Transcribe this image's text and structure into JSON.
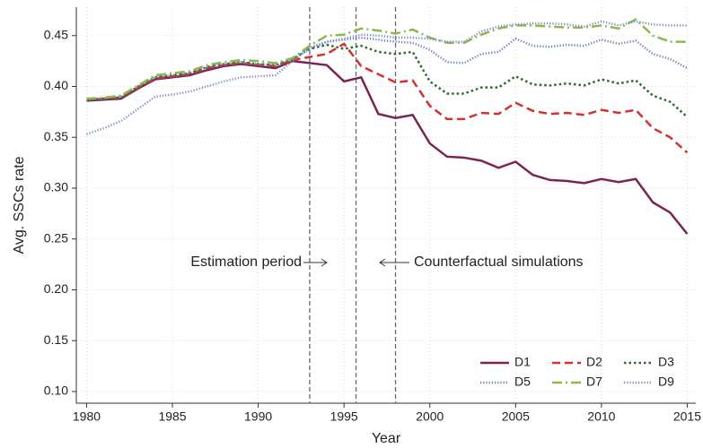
{
  "chart_data": {
    "type": "line",
    "x_label": "Year",
    "y_label": "Avg. SSCs rate",
    "x": [
      1980,
      1981,
      1982,
      1983,
      1984,
      1985,
      1986,
      1987,
      1988,
      1989,
      1990,
      1991,
      1992,
      1993,
      1994,
      1995,
      1996,
      1997,
      1998,
      1999,
      2000,
      2001,
      2002,
      2003,
      2004,
      2005,
      2006,
      2007,
      2008,
      2009,
      2010,
      2011,
      2012,
      2013,
      2014,
      2015
    ],
    "series": [
      {
        "name": "D1",
        "color": "#7b2652",
        "dash": "solid",
        "values": [
          0.386,
          0.387,
          0.388,
          0.398,
          0.407,
          0.409,
          0.411,
          0.416,
          0.42,
          0.422,
          0.42,
          0.418,
          0.425,
          0.423,
          0.421,
          0.405,
          0.409,
          0.373,
          0.369,
          0.372,
          0.344,
          0.331,
          0.33,
          0.327,
          0.32,
          0.326,
          0.313,
          0.308,
          0.307,
          0.305,
          0.309,
          0.306,
          0.309,
          0.286,
          0.276,
          0.255
        ]
      },
      {
        "name": "D2",
        "color": "#d62f30",
        "dash": "dashed",
        "values": [
          0.387,
          0.388,
          0.389,
          0.399,
          0.408,
          0.41,
          0.412,
          0.418,
          0.421,
          0.423,
          0.421,
          0.42,
          0.426,
          0.429,
          0.432,
          0.442,
          0.42,
          0.412,
          0.404,
          0.406,
          0.381,
          0.368,
          0.368,
          0.374,
          0.373,
          0.384,
          0.376,
          0.373,
          0.374,
          0.372,
          0.377,
          0.374,
          0.377,
          0.359,
          0.35,
          0.335
        ]
      },
      {
        "name": "D3",
        "color": "#2d6a2d",
        "dash": "dotted",
        "values": [
          0.387,
          0.388,
          0.389,
          0.4,
          0.409,
          0.411,
          0.413,
          0.419,
          0.422,
          0.424,
          0.422,
          0.421,
          0.427,
          0.437,
          0.441,
          0.437,
          0.44,
          0.434,
          0.432,
          0.434,
          0.405,
          0.393,
          0.393,
          0.399,
          0.399,
          0.41,
          0.402,
          0.401,
          0.403,
          0.401,
          0.407,
          0.403,
          0.406,
          0.391,
          0.385,
          0.37
        ]
      },
      {
        "name": "D5",
        "color": "#6a7fb5",
        "dash": "finedot",
        "values": [
          0.387,
          0.388,
          0.39,
          0.4,
          0.409,
          0.411,
          0.413,
          0.419,
          0.422,
          0.424,
          0.422,
          0.421,
          0.427,
          0.437,
          0.444,
          0.446,
          0.448,
          0.446,
          0.444,
          0.443,
          0.436,
          0.424,
          0.423,
          0.432,
          0.434,
          0.447,
          0.44,
          0.439,
          0.441,
          0.44,
          0.446,
          0.442,
          0.445,
          0.432,
          0.427,
          0.418
        ]
      },
      {
        "name": "D7",
        "color": "#8db84a",
        "dash": "dashdot",
        "values": [
          0.388,
          0.389,
          0.391,
          0.401,
          0.411,
          0.413,
          0.415,
          0.421,
          0.424,
          0.426,
          0.425,
          0.423,
          0.428,
          0.44,
          0.45,
          0.451,
          0.457,
          0.455,
          0.452,
          0.456,
          0.448,
          0.443,
          0.443,
          0.451,
          0.457,
          0.46,
          0.46,
          0.459,
          0.458,
          0.458,
          0.46,
          0.457,
          0.466,
          0.45,
          0.444,
          0.444
        ]
      },
      {
        "name": "D9",
        "color": "#7b8fc4",
        "dash": "finedot",
        "values": [
          0.353,
          0.359,
          0.366,
          0.378,
          0.39,
          0.392,
          0.395,
          0.4,
          0.405,
          0.409,
          0.41,
          0.411,
          0.425,
          0.438,
          0.444,
          0.447,
          0.451,
          0.45,
          0.448,
          0.448,
          0.447,
          0.444,
          0.444,
          0.454,
          0.459,
          0.461,
          0.462,
          0.462,
          0.461,
          0.459,
          0.464,
          0.46,
          0.464,
          0.461,
          0.46,
          0.46
        ]
      }
    ],
    "xlim": [
      1979.4,
      2015.5
    ],
    "ylim": [
      0.0885,
      0.478
    ],
    "xticks": [
      1980,
      1985,
      1990,
      1995,
      2000,
      2005,
      2010,
      2015
    ],
    "yticks": [
      {
        "value": 0.1,
        "label": "0.10"
      },
      0.15,
      {
        "value": 0.2,
        "label": "0.20"
      },
      0.25,
      {
        "value": 0.3,
        "label": "0.30"
      },
      0.35,
      {
        "value": 0.4,
        "label": "0.40"
      },
      0.45
    ],
    "grid": true,
    "vlines": [
      1993,
      1995.7,
      1998
    ],
    "annotations": [
      {
        "text": "Estimation period"
      },
      {
        "text": "Counterfactual simulations"
      }
    ],
    "legend_position": "lower right"
  }
}
